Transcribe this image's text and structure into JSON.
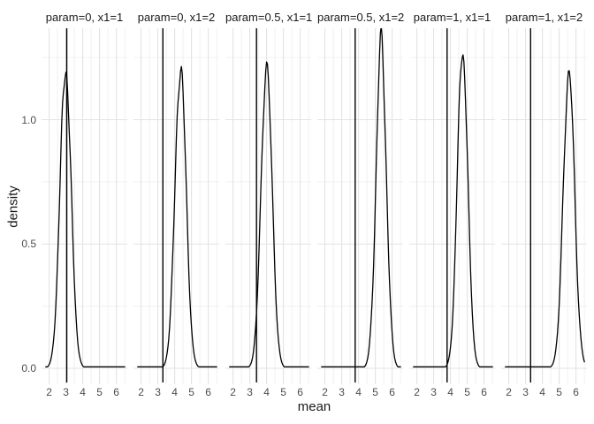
{
  "figure": {
    "background": "#FFFFFF",
    "x_tick_labels": [
      "2",
      "3",
      "4",
      "5",
      "6"
    ],
    "y_tick_labels": [
      "0.0",
      "0.5",
      "1.0"
    ]
  },
  "colors": {
    "curve": "#000000",
    "vline": "#000000",
    "grid_major": "#E3E3E3",
    "grid_minor": "#F0F0F0",
    "tick_text": "#4D4D4D",
    "strip_text": "#1A1A1A",
    "axis_title_text": "#1A1A1A"
  },
  "chart_data": {
    "type": "line",
    "subtype": "faceted-density",
    "title": "",
    "xlabel": "mean",
    "ylabel": "density",
    "x_ticks": [
      2,
      3,
      4,
      5,
      6
    ],
    "y_ticks": [
      0,
      0.5,
      1.0
    ],
    "x_range": [
      1.55,
      6.65
    ],
    "y_range": [
      -0.07,
      1.37
    ],
    "grid": true,
    "legend": "none",
    "facet_labels": [
      "param=0, x1=1",
      "param=0, x1=2",
      "param=0.5, x1=1",
      "param=0.5, x1=2",
      "param=1, x1=1",
      "param=1, x1=2"
    ],
    "panels": [
      {
        "label": "param=0, x1=1",
        "param": "0",
        "x1": "1",
        "peak_x": 2.98,
        "peak_density": 1.21,
        "sd": 0.33,
        "vline_x": 3.05
      },
      {
        "label": "param=0, x1=2",
        "param": "0",
        "x1": "2",
        "peak_x": 4.35,
        "peak_density": 1.22,
        "sd": 0.327,
        "vline_x": 3.3
      },
      {
        "label": "param=0.5, x1=1",
        "param": "0.5",
        "x1": "1",
        "peak_x": 4.0,
        "peak_density": 1.23,
        "sd": 0.324,
        "vline_x": 3.4
      },
      {
        "label": "param=0.5, x1=2",
        "param": "0.5",
        "x1": "2",
        "peak_x": 5.35,
        "peak_density": 1.31,
        "sd": 0.305,
        "vline_x": 3.8
      },
      {
        "label": "param=1, x1=1",
        "param": "1",
        "x1": "1",
        "peak_x": 4.72,
        "peak_density": 1.29,
        "sd": 0.309,
        "vline_x": 3.8
      },
      {
        "label": "param=1, x1=2",
        "param": "1",
        "x1": "2",
        "peak_x": 5.58,
        "peak_density": 1.2,
        "sd": 0.332,
        "vline_x": 3.3
      }
    ]
  }
}
